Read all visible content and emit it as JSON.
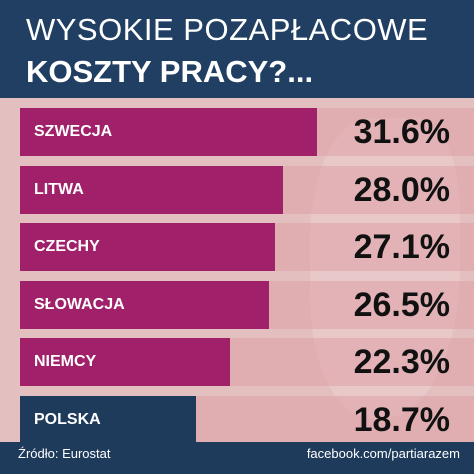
{
  "header": {
    "title_line1": "WYSOKIE POZAPŁACOWE",
    "title_line2": "KOSZTY PRACY?..."
  },
  "chart_data": {
    "type": "bar",
    "orientation": "horizontal",
    "categories": [
      "SZWECJA",
      "LITWA",
      "CZECHY",
      "SŁOWACJA",
      "NIEMCY",
      "POLSKA"
    ],
    "values": [
      31.6,
      28.0,
      27.1,
      26.5,
      22.3,
      18.7
    ],
    "value_labels": [
      "31.6%",
      "28.0%",
      "27.1%",
      "26.5%",
      "22.3%",
      "18.7%"
    ],
    "bar_colors": [
      "#a0206a",
      "#a0206a",
      "#a0206a",
      "#a0206a",
      "#a0206a",
      "#1f3b5c"
    ],
    "title": "",
    "xlabel": "",
    "ylabel": "",
    "grid": false,
    "legend": "none"
  },
  "footer": {
    "source": "Źródło: Eurostat",
    "link": "facebook.com/partiarazem"
  }
}
